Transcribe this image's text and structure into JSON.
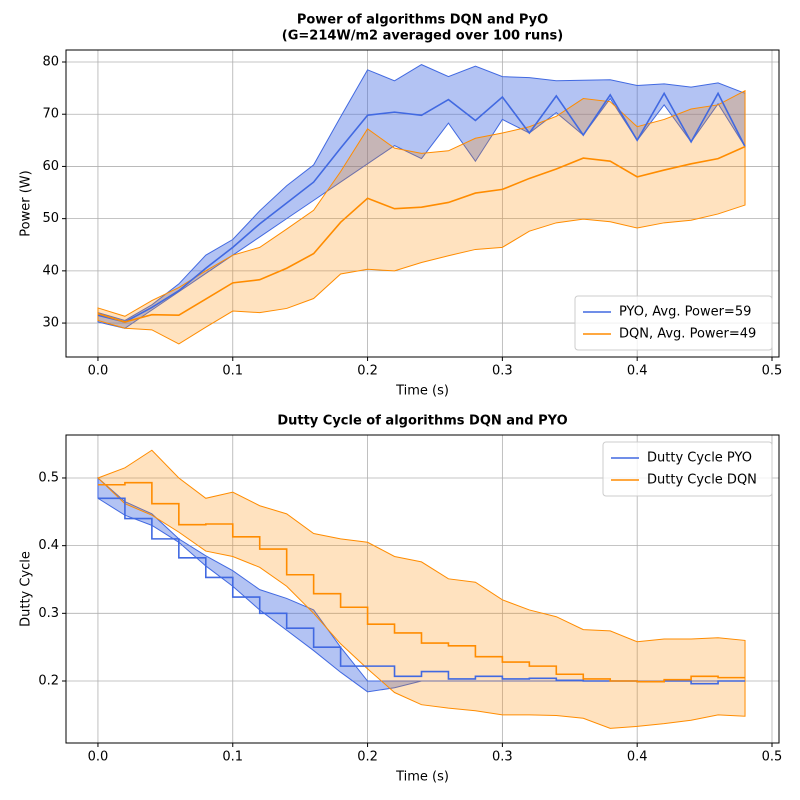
{
  "chart_data": [
    {
      "type": "line",
      "title": [
        "Power of algorithms DQN and PyO",
        "(G=214W/m2 averaged over 100 runs)"
      ],
      "x_label": "Time (s)",
      "y_label": "Power (W)",
      "x": [
        0,
        0.02,
        0.04,
        0.06,
        0.08,
        0.1,
        0.12,
        0.14,
        0.16,
        0.18,
        0.2,
        0.22,
        0.24,
        0.26,
        0.28,
        0.3,
        0.32,
        0.34,
        0.36,
        0.38,
        0.4,
        0.42,
        0.44,
        0.46,
        0.48
      ],
      "series": [
        {
          "name": "PYO, Avg. Power=59",
          "color": "#4169e1",
          "values": [
            31.5,
            30.2,
            33,
            36.2,
            40.5,
            44.5,
            49,
            53,
            57,
            63.5,
            69.8,
            70.4,
            69.8,
            72.8,
            68.8,
            73.3,
            66.4,
            73.5,
            66,
            73.7,
            65,
            74,
            64.7,
            74,
            63.8
          ],
          "upper": [
            32,
            30.5,
            33.5,
            37.5,
            43,
            46,
            51.5,
            56.3,
            60.3,
            69.5,
            78.5,
            76.4,
            79.5,
            77.2,
            79.2,
            77.2,
            77,
            76.4,
            76.5,
            76.6,
            75.5,
            75.8,
            75.2,
            76,
            74
          ],
          "lower": [
            30.2,
            29,
            32.5,
            36,
            39.5,
            43,
            46.5,
            50,
            53.5,
            57,
            60.5,
            64,
            61.5,
            68.3,
            61,
            69,
            66.4,
            70.3,
            66,
            73,
            65,
            71.8,
            64.7,
            72,
            63.8
          ]
        },
        {
          "name": "DQN, Avg. Power=49",
          "color": "#ff8c00",
          "values": [
            31.8,
            30.2,
            31.6,
            31.5,
            34.6,
            37.7,
            38.3,
            40.5,
            43.3,
            49.3,
            53.9,
            51.9,
            52.2,
            53.1,
            54.9,
            55.6,
            57.7,
            59.5,
            61.6,
            61,
            58,
            59.3,
            60.5,
            61.5,
            63.8
          ],
          "upper": [
            32.9,
            31.3,
            34.3,
            36.8,
            40,
            43,
            44.5,
            48,
            51.6,
            59,
            67.2,
            63.5,
            62.5,
            63,
            65.4,
            66.4,
            67.6,
            69.6,
            73,
            72.4,
            67.6,
            69,
            71,
            71.8,
            74.5
          ],
          "lower": [
            30.5,
            29,
            28.7,
            26,
            29.2,
            32.3,
            32,
            32.8,
            34.7,
            39.4,
            40.3,
            40,
            41.6,
            42.9,
            44.1,
            44.5,
            47.6,
            49.2,
            49.9,
            49.4,
            48.2,
            49.2,
            49.7,
            50.9,
            52.6
          ]
        }
      ],
      "xlim": [
        -0.0237,
        0.5052
      ],
      "ylim": [
        23.5,
        82.3
      ],
      "xticks": [
        {
          "value": 0,
          "label": "0.0"
        },
        0.1,
        0.2,
        0.3,
        0.4,
        0.5
      ],
      "yticks": [
        30,
        40,
        50,
        60,
        70,
        80
      ],
      "grid": true,
      "legend": "lower right"
    },
    {
      "type": "step",
      "title": [
        "Dutty Cycle of algorithms DQN and PYO"
      ],
      "x_label": "Time (s)",
      "y_label": "Dutty Cycle",
      "x": [
        0,
        0.02,
        0.04,
        0.06,
        0.08,
        0.1,
        0.12,
        0.14,
        0.16,
        0.18,
        0.2,
        0.22,
        0.24,
        0.26,
        0.28,
        0.3,
        0.32,
        0.34,
        0.36,
        0.38,
        0.4,
        0.42,
        0.44,
        0.46,
        0.48
      ],
      "series": [
        {
          "name": "Dutty Cycle PYO",
          "color": "#4169e1",
          "values": [
            0.47,
            0.44,
            0.41,
            0.382,
            0.353,
            0.324,
            0.3,
            0.278,
            0.25,
            0.222,
            0.222,
            0.207,
            0.214,
            0.203,
            0.207,
            0.203,
            0.204,
            0.201,
            0.2,
            0.2,
            0.199,
            0.2,
            0.196,
            0.2,
            0.2
          ],
          "upper": [
            0.5,
            0.465,
            0.447,
            0.41,
            0.385,
            0.363,
            0.335,
            0.322,
            0.305,
            0.25,
            0.2,
            0.2,
            0.2,
            0.2,
            0.2,
            0.2,
            0.2,
            0.2,
            0.2,
            0.2,
            0.2,
            0.2,
            0.2,
            0.2,
            0.2
          ],
          "lower": [
            0.47,
            0.445,
            0.43,
            0.405,
            0.37,
            0.34,
            0.305,
            0.275,
            0.245,
            0.213,
            0.184,
            0.19,
            0.2,
            0.2,
            0.2,
            0.2,
            0.2,
            0.2,
            0.2,
            0.2,
            0.2,
            0.2,
            0.2,
            0.2,
            0.2
          ]
        },
        {
          "name": "Dutty Cycle DQN",
          "color": "#ff8c00",
          "values": [
            0.49,
            0.493,
            0.462,
            0.431,
            0.432,
            0.413,
            0.395,
            0.357,
            0.329,
            0.309,
            0.284,
            0.271,
            0.256,
            0.252,
            0.236,
            0.228,
            0.222,
            0.21,
            0.203,
            0.2,
            0.199,
            0.202,
            0.207,
            0.205,
            0.205
          ],
          "upper": [
            0.5,
            0.515,
            0.541,
            0.5,
            0.47,
            0.479,
            0.459,
            0.447,
            0.418,
            0.41,
            0.405,
            0.384,
            0.376,
            0.351,
            0.346,
            0.32,
            0.305,
            0.295,
            0.276,
            0.274,
            0.258,
            0.262,
            0.262,
            0.264,
            0.26
          ],
          "lower": [
            0.5,
            0.462,
            0.445,
            0.42,
            0.392,
            0.384,
            0.368,
            0.34,
            0.3,
            0.255,
            0.218,
            0.183,
            0.165,
            0.16,
            0.156,
            0.15,
            0.15,
            0.149,
            0.145,
            0.13,
            0.133,
            0.137,
            0.142,
            0.15,
            0.148
          ]
        }
      ],
      "xlim": [
        -0.0237,
        0.5052
      ],
      "ylim": [
        0.1084,
        0.5635
      ],
      "xticks": [
        {
          "value": 0,
          "label": "0.0"
        },
        0.1,
        0.2,
        0.3,
        0.4,
        0.5
      ],
      "yticks": [
        0.2,
        0.3,
        0.4,
        0.5
      ],
      "grid": true,
      "legend": "upper right"
    }
  ]
}
